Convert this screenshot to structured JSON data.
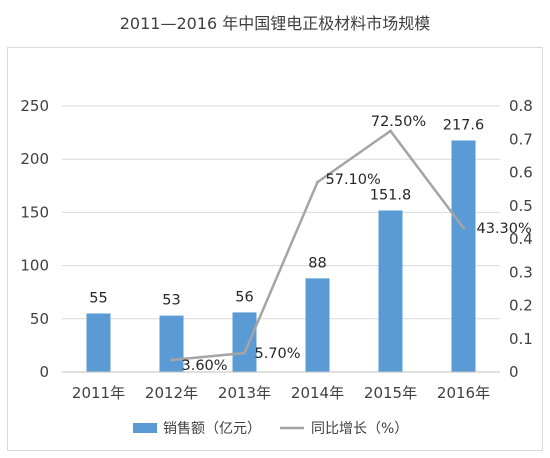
{
  "chart_data": {
    "type": "bar",
    "title": "2011—2016 年中国锂电正极材料市场规模",
    "categories": [
      "2011年",
      "2012年",
      "2013年",
      "2014年",
      "2015年",
      "2016年"
    ],
    "series": [
      {
        "name": "销售额（亿元）",
        "kind": "bar",
        "axis": "left",
        "values": [
          55,
          53,
          56,
          88,
          151.8,
          217.6
        ],
        "labels": [
          "55",
          "53",
          "56",
          "88",
          "151.8",
          "217.6"
        ],
        "color": "#5b9bd5"
      },
      {
        "name": "同比增长（%）",
        "kind": "line",
        "axis": "right",
        "values": [
          null,
          0.036,
          0.057,
          0.571,
          0.725,
          0.433
        ],
        "labels": [
          "",
          "3.60%",
          "5.70%",
          "57.10%",
          "72.50%",
          "43.30%"
        ],
        "color": "#a5a5a5"
      }
    ],
    "y_left": {
      "min": 0,
      "max": 250,
      "ticks": [
        0,
        50,
        100,
        150,
        200,
        250
      ]
    },
    "y_right": {
      "min": 0,
      "max": 0.8,
      "ticks": [
        "0",
        "0.1",
        "0.2",
        "0.3",
        "0.4",
        "0.5",
        "0.6",
        "0.7",
        "0.8"
      ]
    },
    "grid": true,
    "legend": "bottom"
  }
}
